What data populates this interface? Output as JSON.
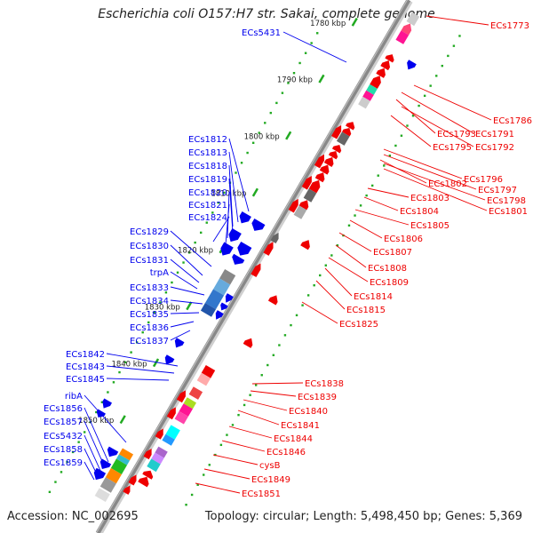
{
  "title": "Escherichia coli O157:H7 str. Sakai, complete genome",
  "footer": {
    "accession": "Accession: NC_002695",
    "summary": "Topology: circular; Length: 5,498,450 bp; Genes: 5,369"
  },
  "colors": {
    "strand_minus": "#0000ee",
    "strand_plus": "#ee0000",
    "axis": "#888888",
    "tick": "#22aa22"
  },
  "scale_labels": [
    "1780 kbp",
    "1790 kbp",
    "1800 kbp",
    "1810 kbp",
    "1820 kbp",
    "1830 kbp",
    "1840 kbp",
    "1850 kbp"
  ],
  "left_labels": [
    "ECs5431",
    "ECs1812",
    "ECs1813",
    "ECs1818",
    "ECs1819",
    "ECs1820",
    "ECs1821",
    "ECs1824",
    "ECs1829",
    "ECs1830",
    "ECs1831",
    "trpA",
    "ECs1833",
    "ECs1834",
    "ECs1835",
    "ECs1836",
    "ECs1837",
    "ECs1842",
    "ECs1843",
    "ECs1845",
    "ribA",
    "ECs1856",
    "ECs1857",
    "ECs5432",
    "ECs1858",
    "ECs1859"
  ],
  "right_labels": [
    "ECs1773",
    "ECs1786",
    "ECs1791",
    "ECs1793",
    "ECs1792",
    "ECs1795",
    "ECs1796",
    "ECs1797",
    "ECs1802",
    "ECs1798",
    "ECs1801",
    "ECs1803",
    "ECs1804",
    "ECs1805",
    "ECs1806",
    "ECs1807",
    "ECs1808",
    "ECs1809",
    "ECs1814",
    "ECs1815",
    "ECs1825",
    "ECs1838",
    "ECs1839",
    "ECs1840",
    "ECs1841",
    "ECs1844",
    "ECs1846",
    "cysB",
    "ECs1849",
    "ECs1851"
  ]
}
